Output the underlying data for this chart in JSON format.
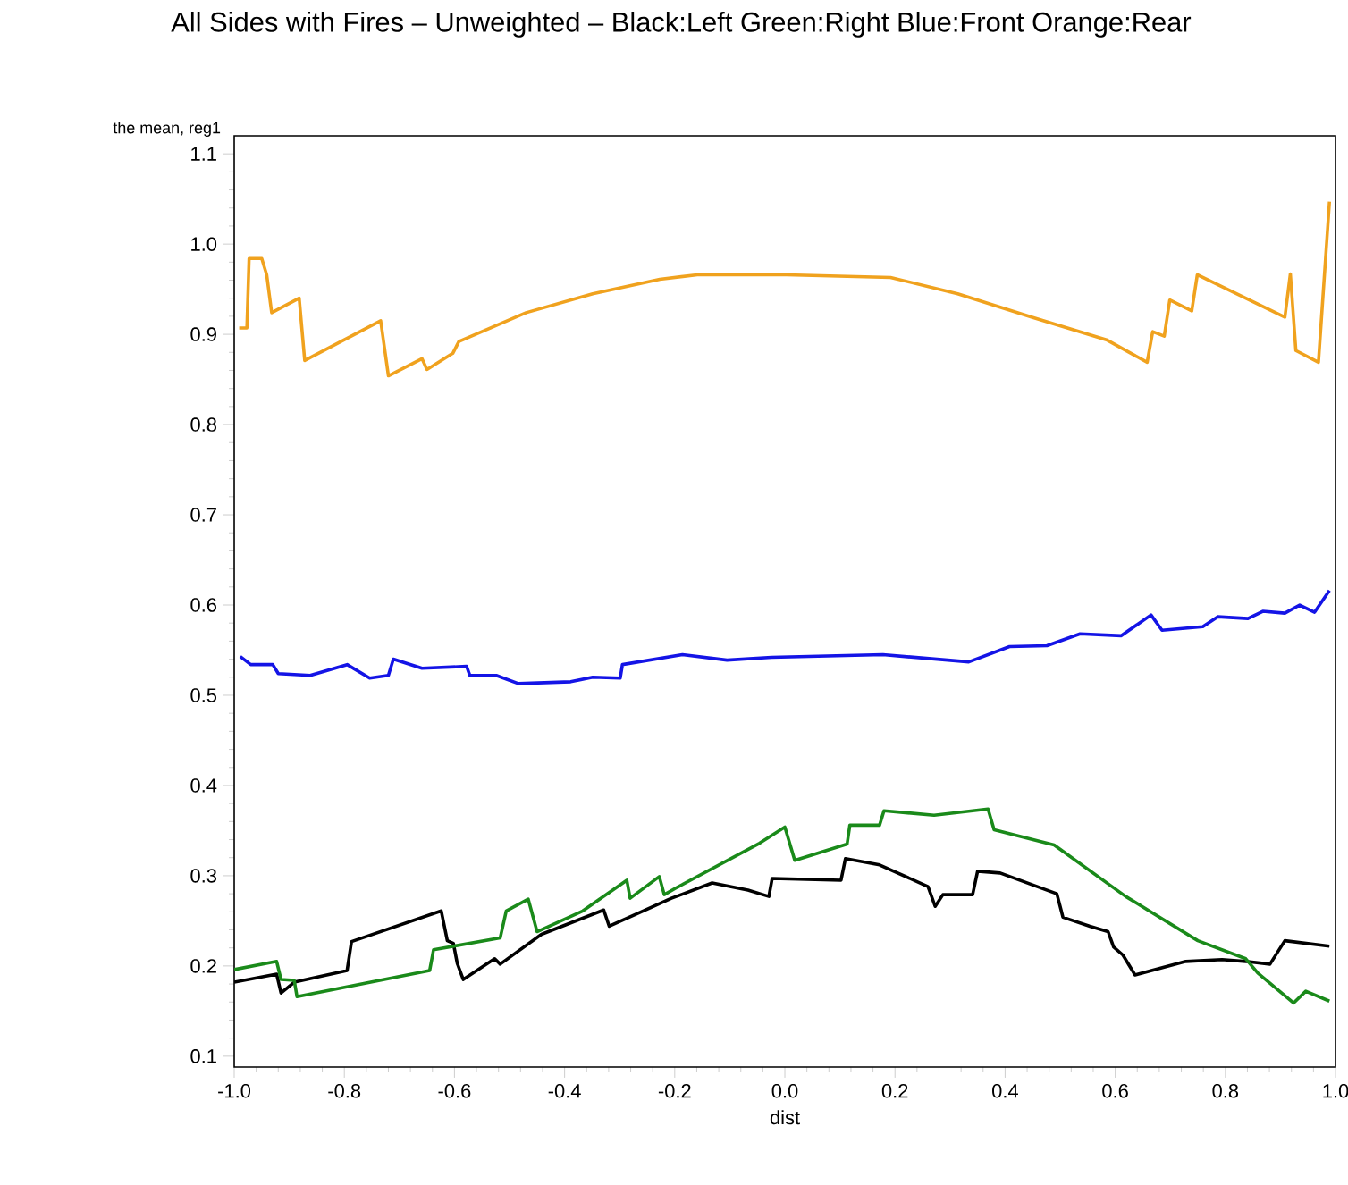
{
  "chart_data": {
    "type": "line",
    "title": "All Sides with Fires – Unweighted – Black:Left   Green:Right   Blue:Front   Orange:Rear",
    "xlabel": "dist",
    "ylabel": "the mean, reg1",
    "xlim": [
      -1.0,
      1.0
    ],
    "ylim": [
      0.088,
      1.12
    ],
    "xticks": [
      {
        "value": -1.0,
        "label": "-1.0"
      },
      -0.8,
      -0.6,
      -0.4,
      -0.2,
      {
        "value": 0.0,
        "label": "0.0"
      },
      0.2,
      0.4,
      0.6,
      0.8,
      {
        "value": 1.0,
        "label": "1.0"
      }
    ],
    "yticks": [
      0.1,
      0.2,
      0.3,
      0.4,
      0.5,
      0.6,
      0.7,
      0.8,
      0.9,
      {
        "value": 1.0,
        "label": "1.0"
      },
      1.1
    ],
    "marker": "none",
    "line_style": "solid",
    "series": [
      {
        "color": "#000000",
        "x": [
          -1.0,
          -0.923,
          -0.915,
          -0.891,
          -0.795,
          -0.787,
          -0.624,
          -0.613,
          -0.602,
          -0.595,
          -0.584,
          -0.527,
          -0.517,
          -0.442,
          -0.329,
          -0.319,
          -0.206,
          -0.132,
          -0.067,
          -0.029,
          -0.023,
          0.102,
          0.11,
          0.172,
          0.26,
          0.273,
          0.287,
          0.341,
          0.35,
          0.391,
          0.494,
          0.505,
          0.554,
          0.587,
          0.597,
          0.614,
          0.636,
          0.728,
          0.794,
          0.837,
          0.881,
          0.908,
          0.989
        ],
        "values": [
          0.182,
          0.191,
          0.17,
          0.182,
          0.195,
          0.227,
          0.261,
          0.228,
          0.225,
          0.203,
          0.185,
          0.208,
          0.202,
          0.235,
          0.262,
          0.244,
          0.275,
          0.292,
          0.284,
          0.277,
          0.297,
          0.295,
          0.319,
          0.312,
          0.288,
          0.266,
          0.279,
          0.279,
          0.305,
          0.303,
          0.28,
          0.254,
          0.244,
          0.238,
          0.221,
          0.212,
          0.19,
          0.205,
          0.207,
          0.205,
          0.202,
          0.228,
          0.222
        ]
      },
      {
        "color": "#1a8a1a",
        "x": [
          -1.0,
          -0.923,
          -0.915,
          -0.891,
          -0.886,
          -0.645,
          -0.638,
          -0.517,
          -0.506,
          -0.466,
          -0.45,
          -0.367,
          -0.287,
          -0.281,
          -0.228,
          -0.219,
          -0.196,
          -0.046,
          0.0,
          0.018,
          0.113,
          0.118,
          0.172,
          0.18,
          0.271,
          0.369,
          0.38,
          0.489,
          0.619,
          0.75,
          0.837,
          0.859,
          0.924,
          0.946,
          0.989
        ],
        "values": [
          0.196,
          0.205,
          0.185,
          0.184,
          0.166,
          0.195,
          0.218,
          0.231,
          0.261,
          0.274,
          0.238,
          0.261,
          0.295,
          0.275,
          0.299,
          0.279,
          0.287,
          0.336,
          0.354,
          0.317,
          0.335,
          0.356,
          0.356,
          0.372,
          0.367,
          0.374,
          0.351,
          0.334,
          0.277,
          0.228,
          0.208,
          0.192,
          0.159,
          0.172,
          0.161
        ]
      },
      {
        "color": "#1414e6",
        "x": [
          -0.989,
          -0.97,
          -0.93,
          -0.92,
          -0.862,
          -0.795,
          -0.754,
          -0.72,
          -0.711,
          -0.659,
          -0.578,
          -0.572,
          -0.524,
          -0.484,
          -0.389,
          -0.349,
          -0.299,
          -0.295,
          -0.186,
          -0.105,
          -0.024,
          0.178,
          0.334,
          0.408,
          0.476,
          0.536,
          0.611,
          0.665,
          0.685,
          0.759,
          0.786,
          0.841,
          0.868,
          0.908,
          0.935,
          0.962,
          0.989
        ],
        "values": [
          0.543,
          0.534,
          0.534,
          0.524,
          0.522,
          0.534,
          0.519,
          0.522,
          0.54,
          0.53,
          0.532,
          0.522,
          0.522,
          0.513,
          0.515,
          0.52,
          0.519,
          0.534,
          0.545,
          0.539,
          0.542,
          0.545,
          0.537,
          0.554,
          0.555,
          0.568,
          0.566,
          0.589,
          0.572,
          0.576,
          0.587,
          0.585,
          0.593,
          0.591,
          0.6,
          0.592,
          0.616
        ]
      },
      {
        "color": "#f0a21e",
        "x": [
          -0.991,
          -0.977,
          -0.973,
          -0.95,
          -0.941,
          -0.932,
          -0.882,
          -0.872,
          -0.734,
          -0.72,
          -0.659,
          -0.65,
          -0.603,
          -0.592,
          -0.47,
          -0.349,
          -0.227,
          -0.159,
          0.003,
          0.192,
          0.314,
          0.449,
          0.584,
          0.658,
          0.668,
          0.689,
          0.699,
          0.739,
          0.749,
          0.908,
          0.918,
          0.928,
          0.969,
          0.989
        ],
        "values": [
          0.907,
          0.907,
          0.984,
          0.984,
          0.966,
          0.924,
          0.94,
          0.871,
          0.915,
          0.854,
          0.873,
          0.861,
          0.879,
          0.892,
          0.924,
          0.945,
          0.961,
          0.966,
          0.966,
          0.963,
          0.945,
          0.919,
          0.894,
          0.869,
          0.903,
          0.898,
          0.938,
          0.926,
          0.966,
          0.919,
          0.967,
          0.882,
          0.869,
          1.047
        ]
      }
    ]
  }
}
